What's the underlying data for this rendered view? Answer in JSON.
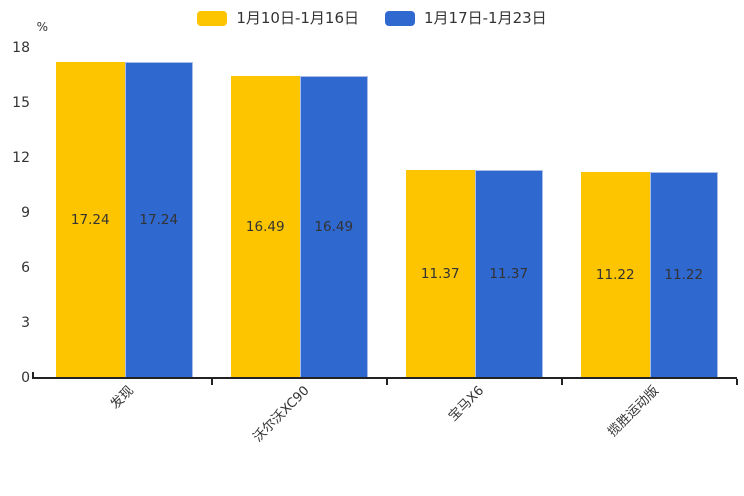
{
  "chart_data": {
    "type": "bar",
    "title": "",
    "xlabel": "",
    "ylabel": "%",
    "categories": [
      "发现",
      "沃尔沃XC90",
      "宝马X6",
      "揽胜运动版"
    ],
    "series": [
      {
        "name": "1月10日-1月16日",
        "color": "#FDC500",
        "values": [
          17.24,
          16.49,
          11.37,
          11.22
        ]
      },
      {
        "name": "1月17日-1月23日",
        "color": "#2F68CF",
        "values": [
          17.24,
          16.49,
          11.37,
          11.22
        ]
      }
    ],
    "value_labels": [
      "17.24",
      "16.49",
      "11.37",
      "11.22"
    ],
    "yticks": [
      0,
      3,
      6,
      9,
      12,
      15,
      18
    ],
    "ylim": [
      0,
      18
    ],
    "legend_position": "top-center",
    "grid": false,
    "value_labels_shown": true,
    "category_label_rotation_deg": 45
  },
  "colors": {
    "background": "#ffffff",
    "axis": "#222222",
    "text": "#333333",
    "blue_bar_edge": "#aabde8"
  }
}
